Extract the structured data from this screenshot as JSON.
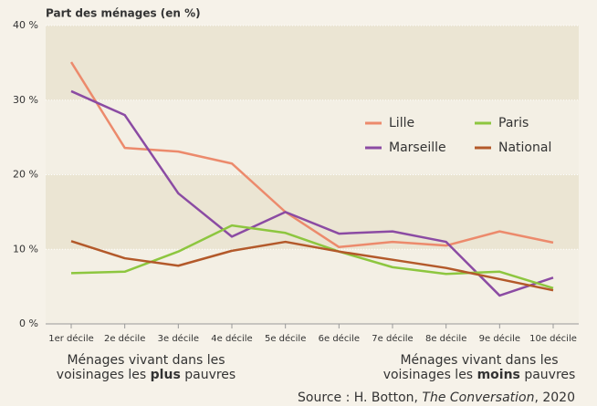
{
  "chart_data": {
    "type": "line",
    "y_label": "Part des ménages (en %)",
    "categories": [
      "1er décile",
      "2e décile",
      "3e décile",
      "4e décile",
      "5e décile",
      "6e décile",
      "7e décile",
      "8e décile",
      "9e décile",
      "10e décile"
    ],
    "series": [
      {
        "name": "Lille",
        "color": "#ec8a6c",
        "values": [
          35.1,
          23.6,
          23.1,
          21.5,
          15,
          10.3,
          11,
          10.5,
          12.4,
          10.9
        ]
      },
      {
        "name": "Marseille",
        "color": "#8b4ba3",
        "values": [
          31.2,
          28,
          17.5,
          11.7,
          15,
          12.1,
          12.4,
          11,
          3.8,
          6.2
        ]
      },
      {
        "name": "Paris",
        "color": "#8dc63f",
        "values": [
          6.8,
          7,
          9.7,
          13.2,
          12.2,
          9.7,
          7.6,
          6.7,
          7,
          4.8
        ]
      },
      {
        "name": "National",
        "color": "#b3592a",
        "values": [
          11.1,
          8.8,
          7.8,
          9.8,
          11,
          9.7,
          8.6,
          7.5,
          6,
          4.5
        ]
      }
    ],
    "ylim": [
      0,
      40
    ],
    "yticks": [
      {
        "value": 0,
        "label": "0 %"
      },
      {
        "value": 10,
        "label": "10 %"
      },
      {
        "value": 20,
        "label": "20 %"
      },
      {
        "value": 30,
        "label": "30 %"
      },
      {
        "value": 40,
        "label": "40 %"
      }
    ],
    "grid": true,
    "legend": "upper right",
    "left_note": [
      "Ménages vivant dans les",
      "voisinages les",
      "plus",
      "pauvres"
    ],
    "right_note": [
      "Ménages vivant dans les",
      "voisinages les",
      "moins",
      "pauvres"
    ],
    "source": [
      "Source : H. Botton,",
      "The Conversation",
      ", 2020"
    ]
  }
}
